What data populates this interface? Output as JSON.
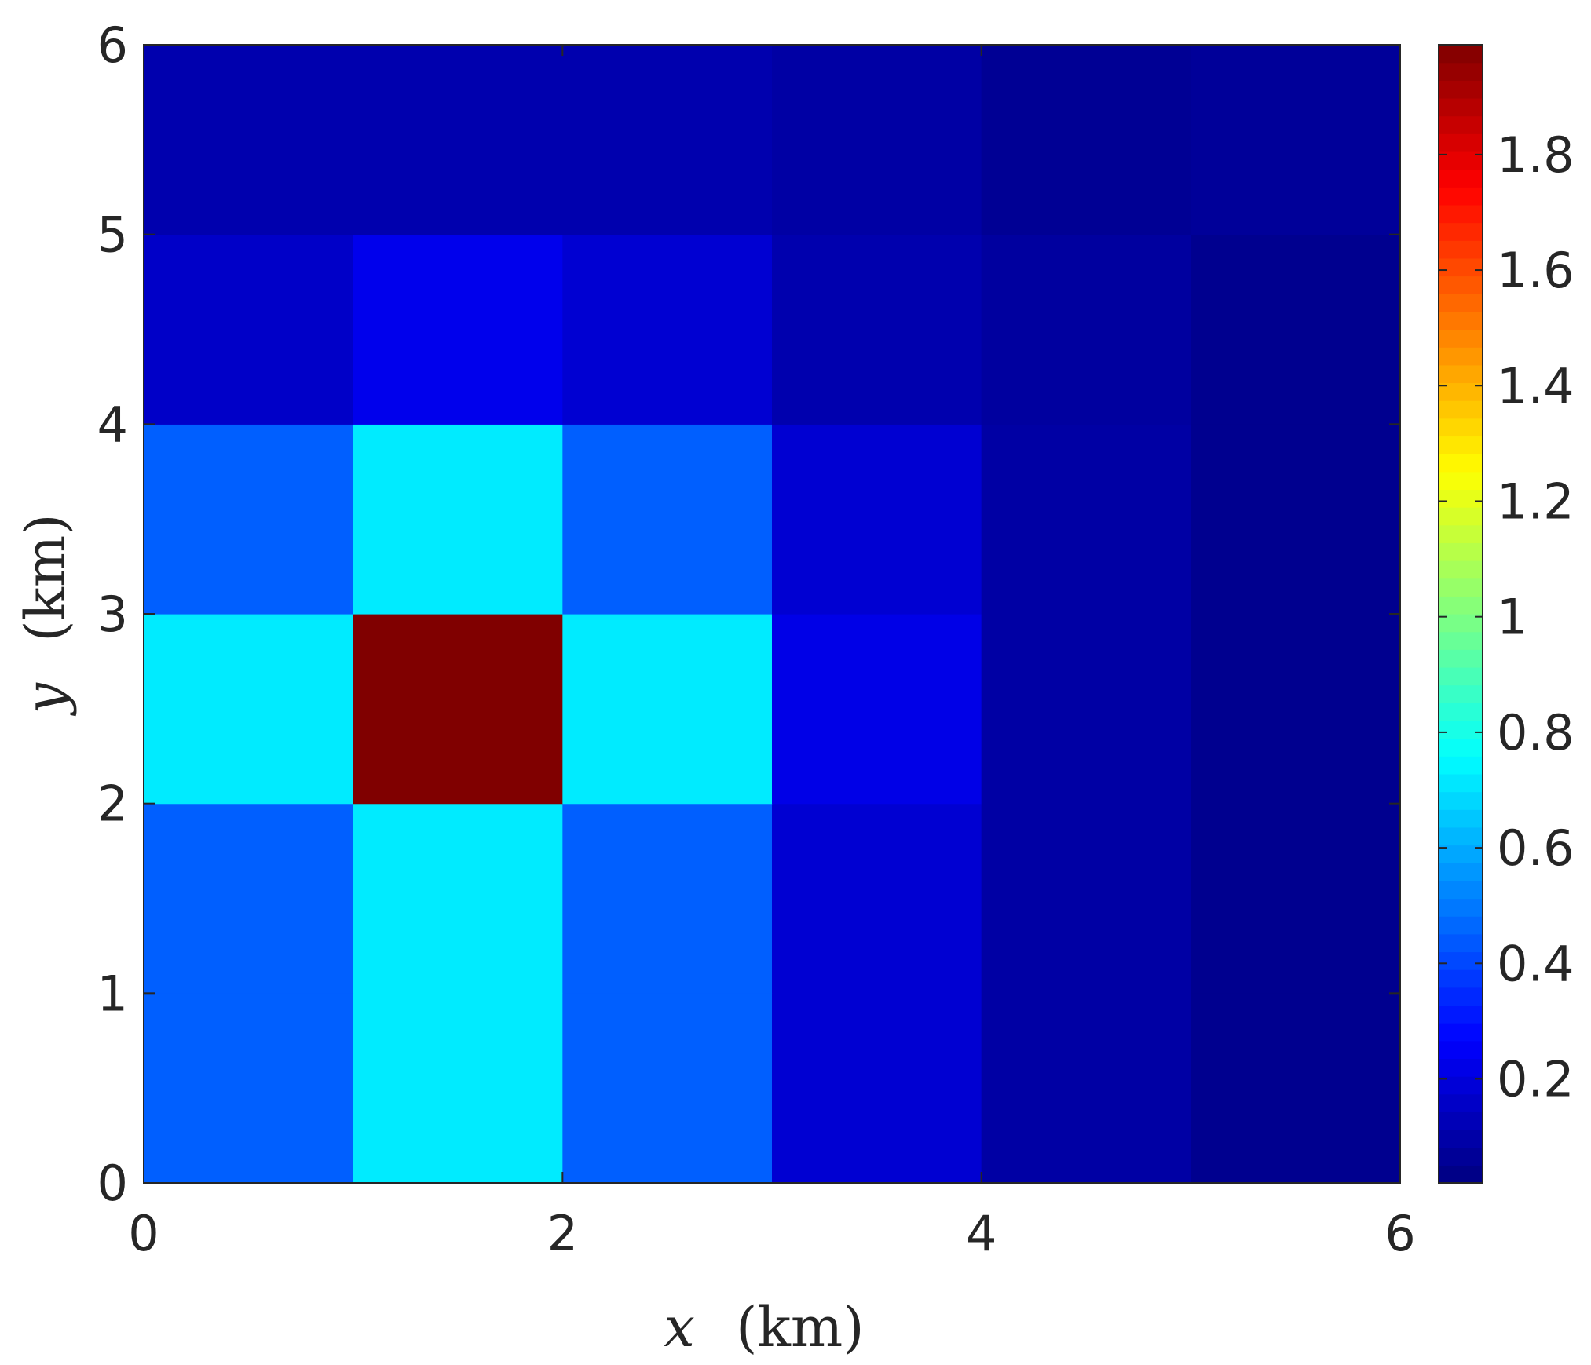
{
  "chart_data": {
    "type": "heatmap",
    "x_edges": [
      0,
      1,
      2,
      3,
      4,
      5,
      6
    ],
    "y_edges": [
      0,
      1,
      2,
      3,
      4,
      5,
      6
    ],
    "xlim": [
      0,
      6
    ],
    "ylim": [
      0,
      6
    ],
    "xticks": [
      0,
      2,
      4,
      6
    ],
    "yticks": [
      0,
      1,
      2,
      3,
      4,
      5,
      6
    ],
    "xlabel_var": "x",
    "xlabel_unit": "(km)",
    "ylabel_var": "y",
    "ylabel_unit": "(km)",
    "colormap": "jet",
    "clim": [
      0.02,
      1.99
    ],
    "colorbar_ticks": [
      0.2,
      0.4,
      0.6,
      0.8,
      1,
      1.2,
      1.4,
      1.6,
      1.8
    ],
    "colorbar_ticklabels": [
      "0.2",
      "0.4",
      "0.6",
      "0.8",
      "1",
      "1.2",
      "1.4",
      "1.6",
      "1.8"
    ],
    "values_rows_bottom_to_top": [
      [
        0.45,
        0.72,
        0.45,
        0.18,
        0.09,
        0.05
      ],
      [
        0.45,
        0.72,
        0.45,
        0.18,
        0.09,
        0.05
      ],
      [
        0.72,
        1.99,
        0.72,
        0.22,
        0.09,
        0.05
      ],
      [
        0.45,
        0.72,
        0.45,
        0.18,
        0.09,
        0.05
      ],
      [
        0.16,
        0.23,
        0.18,
        0.11,
        0.08,
        0.05
      ],
      [
        0.11,
        0.11,
        0.11,
        0.09,
        0.06,
        0.07
      ]
    ]
  }
}
